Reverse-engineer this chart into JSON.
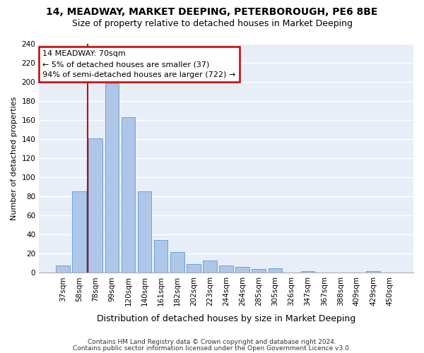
{
  "title1": "14, MEADWAY, MARKET DEEPING, PETERBOROUGH, PE6 8BE",
  "title2": "Size of property relative to detached houses in Market Deeping",
  "xlabel": "Distribution of detached houses by size in Market Deeping",
  "ylabel": "Number of detached properties",
  "footnote1": "Contains HM Land Registry data © Crown copyright and database right 2024.",
  "footnote2": "Contains public sector information licensed under the Open Government Licence v3.0.",
  "categories": [
    "37sqm",
    "58sqm",
    "78sqm",
    "99sqm",
    "120sqm",
    "140sqm",
    "161sqm",
    "182sqm",
    "202sqm",
    "223sqm",
    "244sqm",
    "264sqm",
    "285sqm",
    "305sqm",
    "326sqm",
    "347sqm",
    "367sqm",
    "388sqm",
    "409sqm",
    "429sqm",
    "450sqm"
  ],
  "values": [
    8,
    85,
    141,
    198,
    163,
    85,
    34,
    22,
    9,
    13,
    8,
    6,
    4,
    5,
    0,
    2,
    0,
    0,
    0,
    2,
    0
  ],
  "bar_color": "#aec6e8",
  "bar_edge_color": "#5b9bd5",
  "property_line_label": "14 MEADWAY: 70sqm",
  "annotation_line1": "← 5% of detached houses are smaller (37)",
  "annotation_line2": "94% of semi-detached houses are larger (722) →",
  "annotation_box_color": "#ffffff",
  "annotation_box_edge": "#cc0000",
  "vline_color": "#cc0000",
  "vline_x_index": 1.5,
  "ylim": [
    0,
    240
  ],
  "yticks": [
    0,
    20,
    40,
    60,
    80,
    100,
    120,
    140,
    160,
    180,
    200,
    220,
    240
  ],
  "background_color": "#e8eef7",
  "grid_color": "#ffffff",
  "fig_bg_color": "#ffffff",
  "title1_fontsize": 10,
  "title2_fontsize": 9,
  "xlabel_fontsize": 9,
  "ylabel_fontsize": 8,
  "tick_fontsize": 7.5,
  "footnote_fontsize": 6.5,
  "annotation_fontsize": 8
}
